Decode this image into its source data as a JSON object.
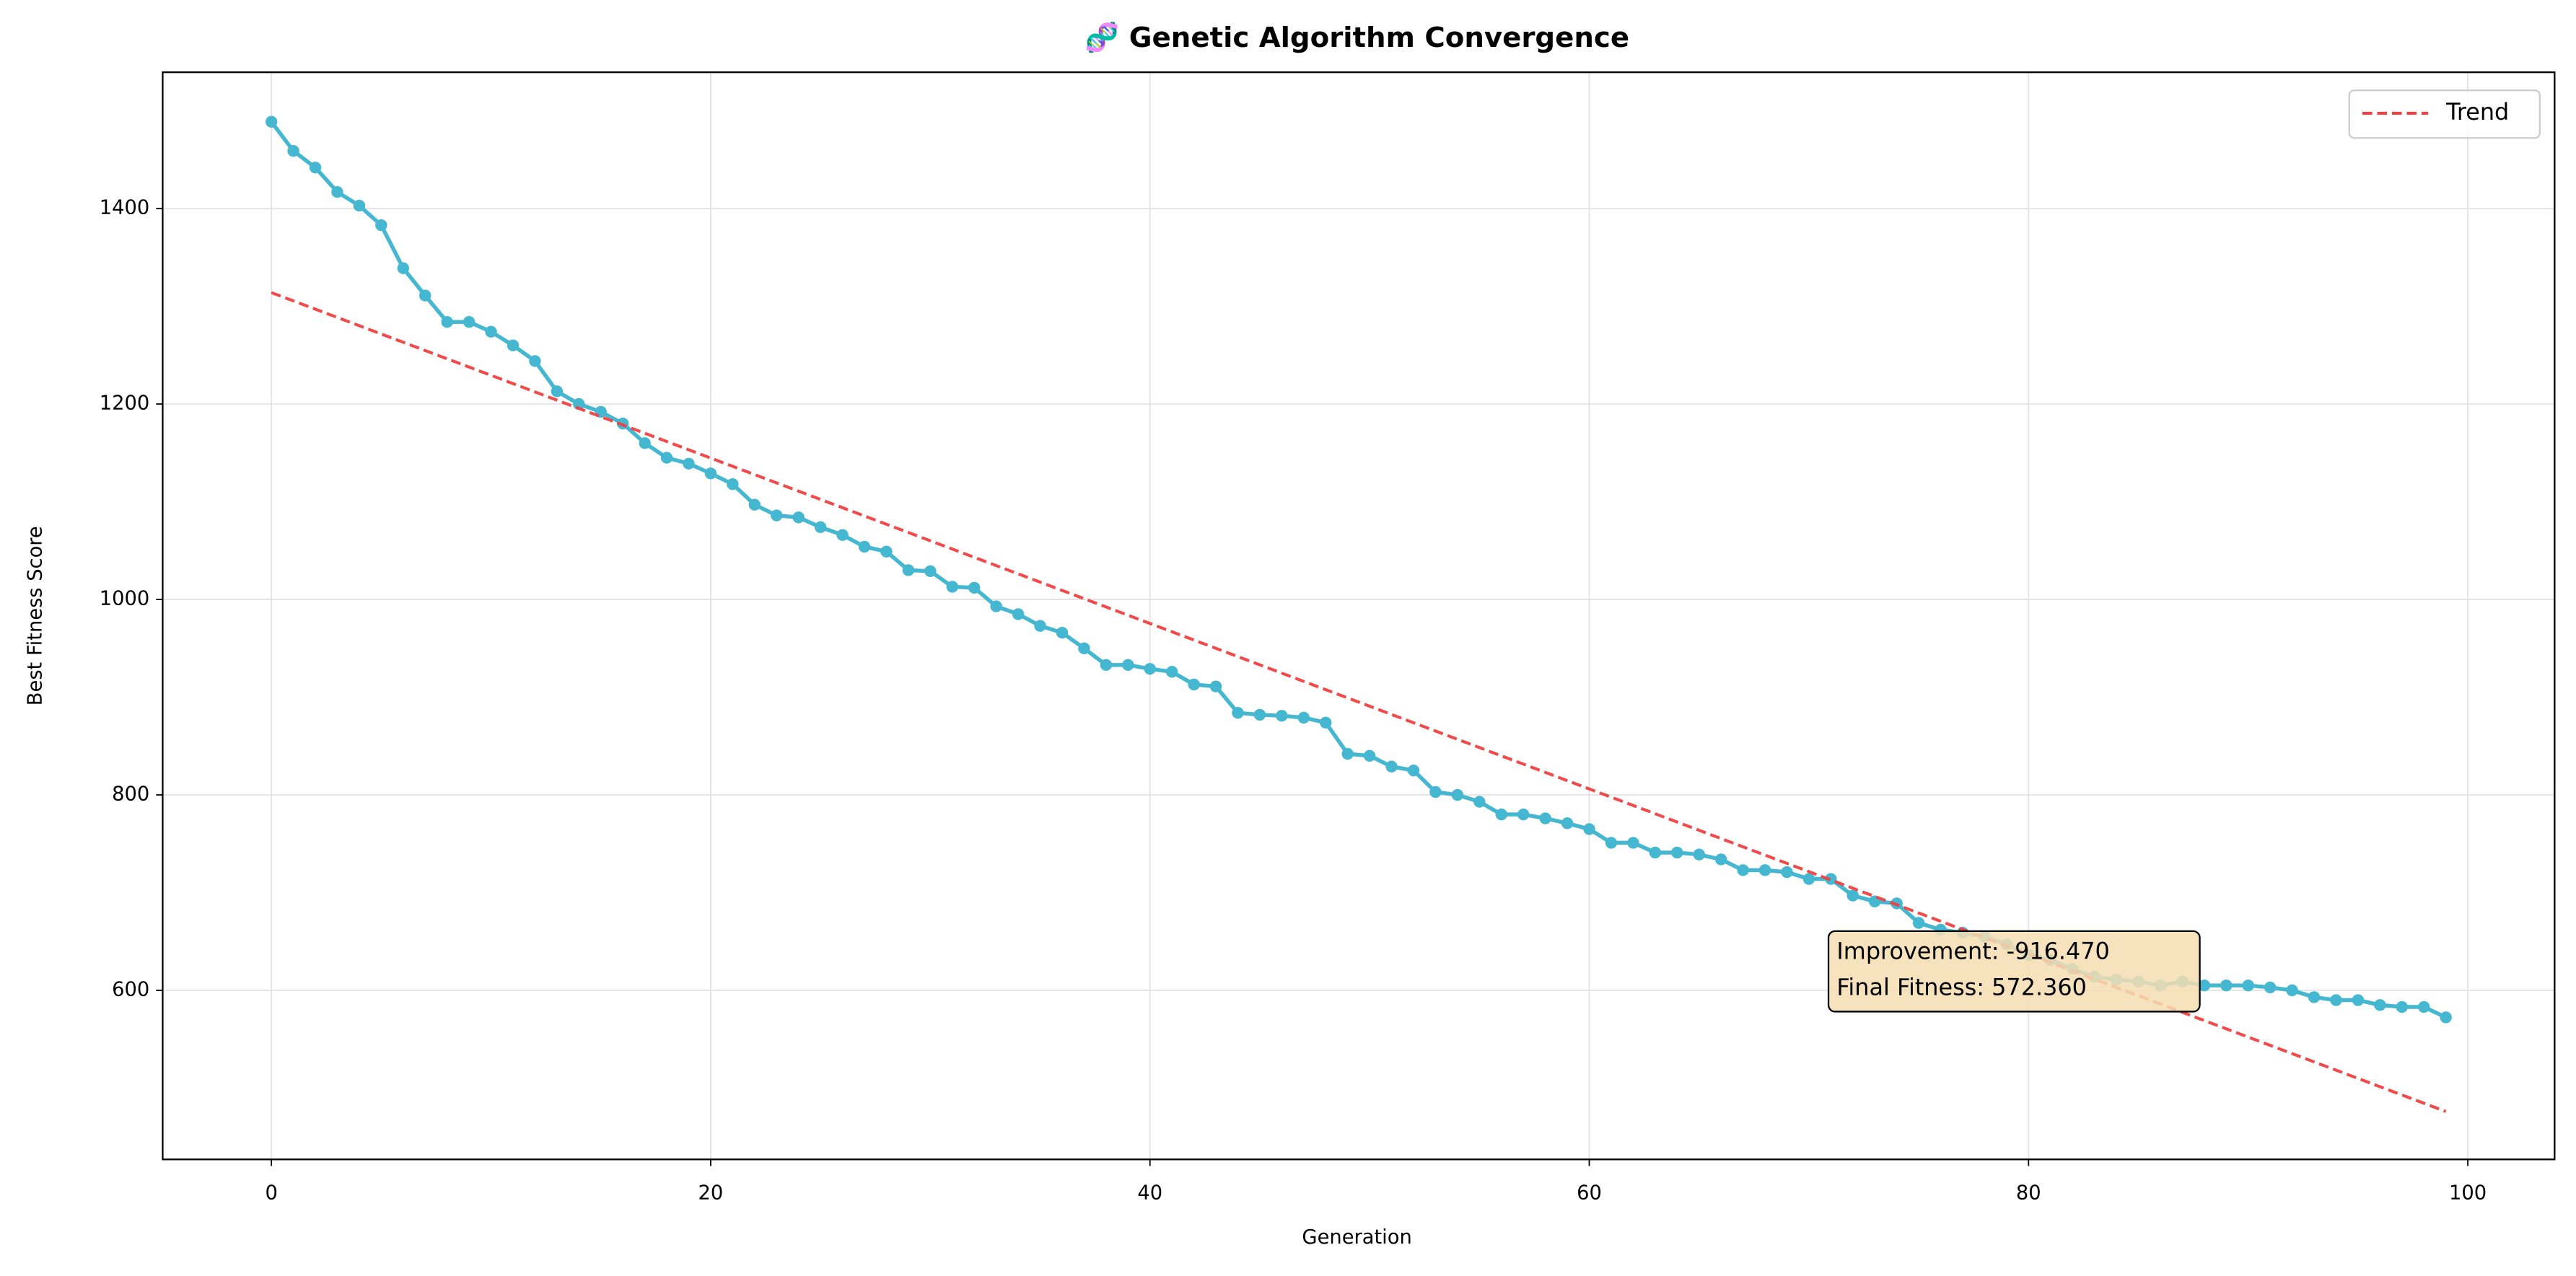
{
  "chart_data": {
    "type": "line",
    "title": "🧬 Genetic Algorithm Convergence",
    "xlabel": "Generation",
    "ylabel": "Best Fitness Score",
    "xlim": [
      -4.95,
      103.95
    ],
    "ylim": [
      427,
      1539.5
    ],
    "xticks": [
      0,
      20,
      40,
      60,
      80,
      100
    ],
    "yticks": [
      600,
      800,
      1000,
      1200,
      1400
    ],
    "grid": true,
    "legend": "upper right",
    "series": [
      {
        "color": "#45b7d1",
        "marker": true,
        "dashed": false,
        "x": [
          0,
          1,
          2,
          3,
          4,
          5,
          6,
          7,
          8,
          9,
          10,
          11,
          12,
          13,
          14,
          15,
          16,
          17,
          18,
          19,
          20,
          21,
          22,
          23,
          24,
          25,
          26,
          27,
          28,
          29,
          30,
          31,
          32,
          33,
          34,
          35,
          36,
          37,
          38,
          39,
          40,
          41,
          42,
          43,
          44,
          45,
          46,
          47,
          48,
          49,
          50,
          51,
          52,
          53,
          54,
          55,
          56,
          57,
          58,
          59,
          60,
          61,
          62,
          63,
          64,
          65,
          66,
          67,
          68,
          69,
          70,
          71,
          72,
          73,
          74,
          75,
          76,
          77,
          78,
          79,
          80,
          81,
          82,
          83,
          84,
          85,
          86,
          87,
          88,
          89,
          90,
          91,
          92,
          93,
          94,
          95,
          96,
          97,
          98,
          99
        ],
        "values": [
          1488.83,
          1459,
          1442,
          1417,
          1403,
          1383,
          1339,
          1311,
          1284,
          1284,
          1274,
          1260,
          1244,
          1213,
          1200,
          1192,
          1180,
          1160,
          1145,
          1139,
          1129,
          1118,
          1097,
          1086,
          1084,
          1074,
          1066,
          1054,
          1049,
          1030,
          1029,
          1013,
          1012,
          993,
          985,
          973,
          966,
          950,
          933,
          933,
          929,
          926,
          913,
          911,
          884,
          882,
          881,
          879,
          874,
          842,
          840,
          829,
          825,
          803,
          800,
          793,
          780,
          780,
          776,
          771,
          765,
          751,
          751,
          741,
          741,
          739,
          734,
          723,
          723,
          721,
          714,
          714,
          697,
          691,
          689,
          669,
          662,
          659,
          655,
          647,
          636,
          631,
          622,
          614,
          611,
          609,
          605,
          609,
          605,
          605,
          605,
          603,
          600,
          593,
          590,
          590,
          585,
          583,
          583,
          572.36
        ]
      },
      {
        "name": "Trend",
        "color": "#f04040",
        "marker": false,
        "dashed": true,
        "x": [
          0,
          99
        ],
        "values": [
          1314,
          476
        ]
      }
    ],
    "annotation": [
      "Improvement: -916.470",
      "Final Fitness: 572.360"
    ]
  }
}
